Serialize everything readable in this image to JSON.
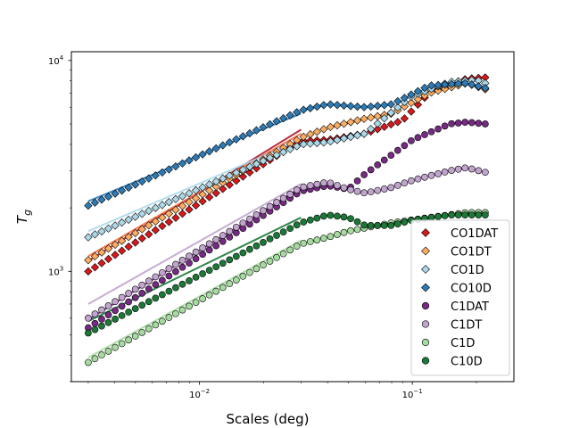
{
  "chart_data": {
    "type": "scatter",
    "title": "",
    "xlabel": "Scales (deg)",
    "ylabel": "T_g",
    "xscale": "log",
    "yscale": "log",
    "xlim": [
      0.0025,
      0.3
    ],
    "ylim": [
      300,
      11000
    ],
    "x_ticks": [
      {
        "value": 0.01,
        "base": "10",
        "exp": "−2"
      },
      {
        "value": 0.1,
        "base": "10",
        "exp": "−1"
      }
    ],
    "y_ticks": [
      {
        "value": 1000,
        "base": "10",
        "exp": "3"
      },
      {
        "value": 10000,
        "base": "10",
        "exp": "4"
      }
    ],
    "legend_position": "lower-right",
    "series": [
      {
        "name": "CO1DAT",
        "marker": "diamond",
        "color": "#d7191c",
        "fit": {
          "x": [
            0.003,
            0.03
          ],
          "y": [
            1120,
            4700
          ],
          "color": "#b2182b"
        },
        "anchors": [
          [
            0.003,
            1000
          ],
          [
            0.03,
            4150
          ],
          [
            0.04,
            4200
          ],
          [
            0.06,
            4500
          ],
          [
            0.09,
            5200
          ],
          [
            0.12,
            7000
          ],
          [
            0.18,
            8200
          ],
          [
            0.22,
            8300
          ]
        ]
      },
      {
        "name": "CO1DT",
        "marker": "diamond",
        "color": "#fdae61",
        "fit": {
          "x": [
            0.003,
            0.03
          ],
          "y": [
            1180,
            4500
          ],
          "color": "#f46d43"
        },
        "anchors": [
          [
            0.003,
            1130
          ],
          [
            0.03,
            4300
          ],
          [
            0.04,
            4800
          ],
          [
            0.06,
            5300
          ],
          [
            0.08,
            5600
          ],
          [
            0.12,
            7000
          ],
          [
            0.18,
            7800
          ],
          [
            0.22,
            7300
          ]
        ]
      },
      {
        "name": "CO1D",
        "marker": "diamond",
        "color": "#abd9e9",
        "fit": {
          "x": [
            0.003,
            0.03
          ],
          "y": [
            1550,
            4200
          ],
          "color": "#abd9e9"
        },
        "anchors": [
          [
            0.003,
            1450
          ],
          [
            0.03,
            4000
          ],
          [
            0.04,
            4100
          ],
          [
            0.06,
            4500
          ],
          [
            0.1,
            6800
          ],
          [
            0.15,
            7900
          ],
          [
            0.2,
            8100
          ],
          [
            0.22,
            7800
          ]
        ]
      },
      {
        "name": "CO10D",
        "marker": "diamond",
        "color": "#2c7bb6",
        "fit": {
          "x": [
            0.003,
            0.03
          ],
          "y": [
            2150,
            5600
          ],
          "color": "#2c7bb6"
        },
        "anchors": [
          [
            0.003,
            2050
          ],
          [
            0.03,
            5800
          ],
          [
            0.04,
            6200
          ],
          [
            0.06,
            6000
          ],
          [
            0.08,
            6200
          ],
          [
            0.12,
            7600
          ],
          [
            0.18,
            7800
          ],
          [
            0.22,
            7400
          ]
        ]
      },
      {
        "name": "C1DAT",
        "marker": "circle",
        "color": "#762a83",
        "fit": {
          "x": [
            0.003,
            0.03
          ],
          "y": [
            590,
            2500
          ],
          "color": "#762a83"
        },
        "anchors": [
          [
            0.003,
            540
          ],
          [
            0.03,
            2400
          ],
          [
            0.04,
            2550
          ],
          [
            0.05,
            2450
          ],
          [
            0.06,
            2900
          ],
          [
            0.1,
            4200
          ],
          [
            0.15,
            5000
          ],
          [
            0.18,
            5100
          ],
          [
            0.22,
            5000
          ]
        ]
      },
      {
        "name": "C1DT",
        "marker": "circle",
        "color": "#c2a5cf",
        "fit": {
          "x": [
            0.003,
            0.03
          ],
          "y": [
            700,
            2600
          ],
          "color": "#c2a5cf"
        },
        "anchors": [
          [
            0.003,
            600
          ],
          [
            0.03,
            2500
          ],
          [
            0.04,
            2650
          ],
          [
            0.05,
            2450
          ],
          [
            0.06,
            2350
          ],
          [
            0.08,
            2500
          ],
          [
            0.1,
            2700
          ],
          [
            0.15,
            3000
          ],
          [
            0.18,
            3100
          ],
          [
            0.22,
            2950
          ]
        ]
      },
      {
        "name": "C1D",
        "marker": "circle",
        "color": "#a6dba0",
        "fit": {
          "x": [
            0.003,
            0.03
          ],
          "y": [
            390,
            1400
          ],
          "color": "#a6dba0"
        },
        "anchors": [
          [
            0.003,
            370
          ],
          [
            0.03,
            1350
          ],
          [
            0.04,
            1450
          ],
          [
            0.05,
            1550
          ],
          [
            0.08,
            1700
          ],
          [
            0.12,
            1800
          ],
          [
            0.18,
            1900
          ],
          [
            0.22,
            1900
          ]
        ]
      },
      {
        "name": "C10D",
        "marker": "circle",
        "color": "#1b7837",
        "fit": {
          "x": [
            0.003,
            0.03
          ],
          "y": [
            580,
            1800
          ],
          "color": "#1b7837"
        },
        "anchors": [
          [
            0.003,
            510
          ],
          [
            0.03,
            1700
          ],
          [
            0.04,
            1850
          ],
          [
            0.05,
            1800
          ],
          [
            0.06,
            1650
          ],
          [
            0.08,
            1650
          ],
          [
            0.1,
            1750
          ],
          [
            0.15,
            1850
          ],
          [
            0.22,
            1850
          ]
        ]
      }
    ]
  }
}
